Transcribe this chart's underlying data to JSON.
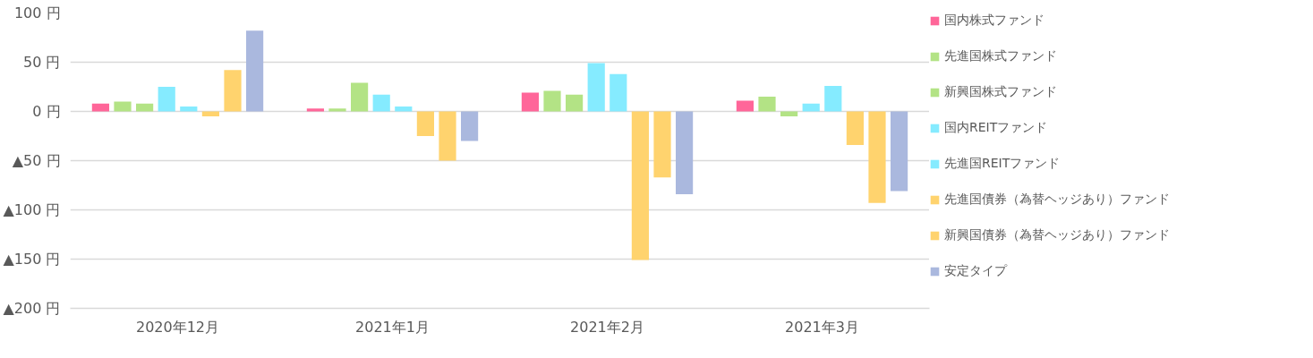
{
  "chart_data": {
    "type": "bar",
    "categories": [
      "2020年12月",
      "2021年1月",
      "2021年2月",
      "2021年3月"
    ],
    "ylim": [
      -200,
      100
    ],
    "yticks": [
      {
        "value": 100,
        "label": "100 円"
      },
      {
        "value": 50,
        "label": "50 円"
      },
      {
        "value": 0,
        "label": "0 円"
      },
      {
        "value": -50,
        "label": "▲50 円"
      },
      {
        "value": -100,
        "label": "▲100 円"
      },
      {
        "value": -150,
        "label": "▲150 円"
      },
      {
        "value": -200,
        "label": "▲200 円"
      }
    ],
    "grid": "y",
    "legend": "right",
    "series": [
      {
        "name": "国内株式ファンド",
        "color": "#ff6699",
        "values": [
          8,
          3,
          19,
          11
        ]
      },
      {
        "name": "先進国株式ファンド",
        "color": "#b3e385",
        "values": [
          10,
          3,
          21,
          15
        ]
      },
      {
        "name": "新興国株式ファンド",
        "color": "#b3e385",
        "values": [
          8,
          29,
          17,
          -5
        ]
      },
      {
        "name": "国内REITファンド",
        "color": "#85ebff",
        "values": [
          25,
          17,
          49,
          8
        ]
      },
      {
        "name": "先進国REITファンド",
        "color": "#85ebff",
        "values": [
          5,
          5,
          38,
          26
        ]
      },
      {
        "name": "先進国債券（為替ヘッジあり）ファンド",
        "color": "#ffd36e",
        "values": [
          -5,
          -25,
          -151,
          -34
        ]
      },
      {
        "name": "新興国債券（為替ヘッジあり）ファンド",
        "color": "#ffd36e",
        "values": [
          42,
          -50,
          -67,
          -93
        ]
      },
      {
        "name": "安定タイプ",
        "color": "#aab8de",
        "values": [
          82,
          -30,
          -84,
          -81
        ]
      }
    ]
  }
}
